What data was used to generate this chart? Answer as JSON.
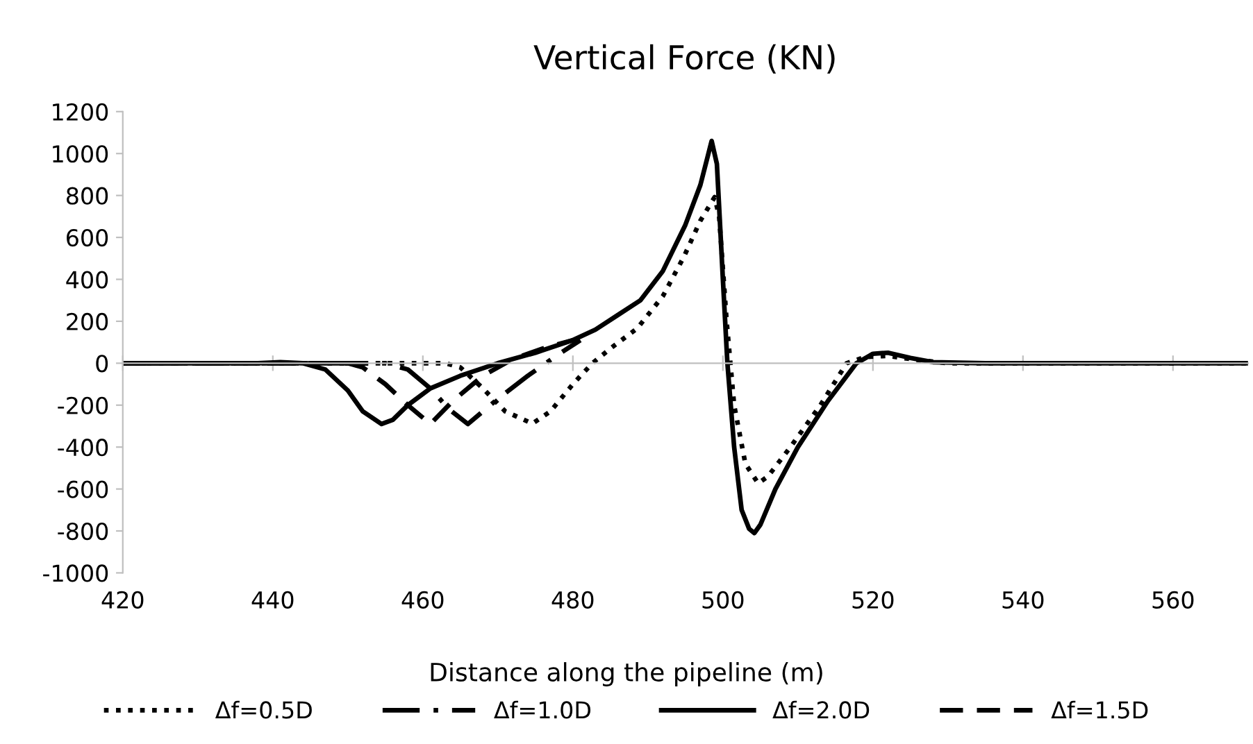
{
  "chart_data": {
    "type": "line",
    "title": "Vertical Force (KN)",
    "xlabel": "Distance along the pipeline (m)",
    "xlim": [
      420,
      570
    ],
    "xticks": [
      420,
      440,
      460,
      480,
      500,
      520,
      540,
      560
    ],
    "ylim": [
      -1000,
      1200
    ],
    "yticks": [
      -1000,
      -800,
      -600,
      -400,
      -200,
      0,
      200,
      400,
      600,
      800,
      1000,
      1200
    ],
    "legend": "bottom",
    "marker": "none",
    "series": [
      {
        "name": "Δf=0.5D",
        "color": "#000000",
        "line_style": "dotted",
        "x": [
          420,
          440,
          463,
          465,
          468,
          471,
          474.6,
          477,
          480,
          482.6,
          485,
          488.6,
          492,
          494.8,
          497,
          498.9,
          499.5,
          500.5,
          501.5,
          503,
          504.7,
          506,
          509,
          513,
          516.5,
          519,
          522,
          526,
          530,
          570
        ],
        "values": [
          0,
          0,
          0,
          -20,
          -120,
          -230,
          -288,
          -230,
          -100,
          0,
          70,
          167,
          320,
          508,
          680,
          792,
          700,
          200,
          -200,
          -480,
          -573,
          -540,
          -400,
          -200,
          0,
          30,
          35,
          15,
          0,
          0
        ]
      },
      {
        "name": "Δf=1.0D",
        "color": "#000000",
        "line_style": "dashdot",
        "x": [
          420,
          440,
          455,
          458,
          461,
          463.5,
          466,
          470,
          474,
          478,
          481
        ],
        "values": [
          0,
          0,
          0,
          -30,
          -120,
          -220,
          -290,
          -170,
          -60,
          40,
          110
        ]
      },
      {
        "name": "Δf=2.0D",
        "color": "#000000",
        "line_style": "solid",
        "x": [
          420,
          438,
          441,
          444,
          447,
          450,
          452,
          454.5,
          456,
          458,
          461,
          465,
          470,
          475,
          480,
          483,
          486,
          489,
          492,
          495,
          497,
          498.5,
          499.2,
          500,
          500.6,
          501.5,
          502.5,
          503.5,
          504.2,
          505,
          507,
          510,
          514,
          517.8,
          520,
          522,
          525,
          528,
          535,
          570
        ],
        "values": [
          0,
          0,
          5,
          0,
          -30,
          -130,
          -230,
          -290,
          -270,
          -200,
          -120,
          -60,
          0,
          50,
          110,
          160,
          230,
          300,
          440,
          660,
          850,
          1060,
          950,
          400,
          0,
          -400,
          -700,
          -790,
          -810,
          -770,
          -600,
          -400,
          -180,
          0,
          45,
          50,
          25,
          5,
          0,
          0
        ]
      },
      {
        "name": "Δf=1.5D",
        "color": "#000000",
        "line_style": "dashed",
        "x": [
          420,
          450,
          452,
          455,
          458,
          461,
          464,
          468,
          472,
          476,
          480
        ],
        "values": [
          0,
          0,
          -20,
          -100,
          -200,
          -290,
          -180,
          -60,
          20,
          70,
          110
        ]
      }
    ]
  }
}
